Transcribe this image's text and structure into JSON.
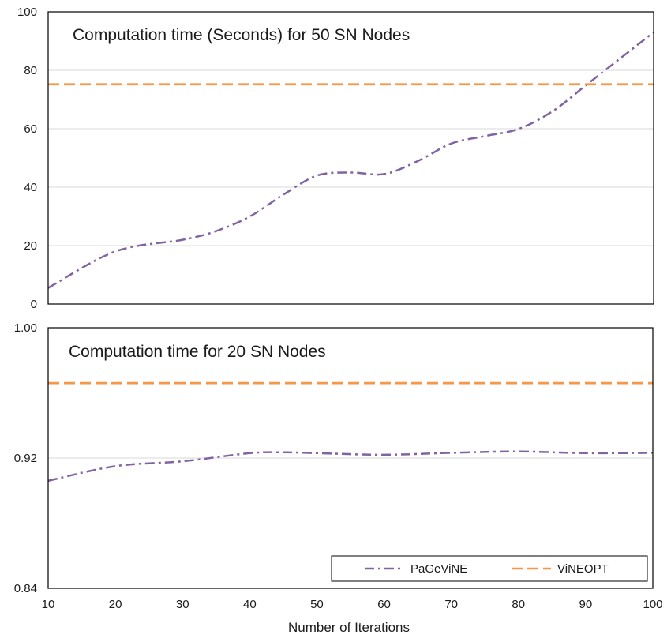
{
  "chart_data": [
    {
      "type": "line",
      "title": "Computation time (Seconds) for 50 SN Nodes",
      "xlabel": "Number of Iterations",
      "ylabel": "",
      "xlim": [
        10,
        100
      ],
      "ylim": [
        0,
        100
      ],
      "yticks": [
        0,
        20,
        40,
        60,
        80,
        100
      ],
      "yticklabels": [
        "0",
        "20",
        "40",
        "60",
        "80",
        "100"
      ],
      "grid": true,
      "series": [
        {
          "name": "PaGeViNE",
          "style": "dashdot",
          "color": "#8064A2",
          "x": [
            10,
            20,
            30,
            35,
            40,
            45,
            50,
            55,
            60,
            65,
            70,
            75,
            80,
            85,
            90,
            95,
            100
          ],
          "values": [
            5.5,
            18,
            22,
            25,
            30,
            37.5,
            44,
            45,
            44.5,
            49,
            55,
            57.5,
            60,
            66,
            75,
            84,
            93
          ]
        },
        {
          "name": "ViNEOPT",
          "style": "dashed",
          "color": "#F79646",
          "x": [
            10,
            100
          ],
          "values": [
            75.2,
            75.2
          ]
        }
      ]
    },
    {
      "type": "line",
      "title": "Computation time for 20 SN Nodes",
      "xlabel": "Number of Iterations",
      "ylabel": "",
      "xlim": [
        10,
        100
      ],
      "ylim": [
        0.84,
        1.0
      ],
      "xticks": [
        10,
        20,
        30,
        40,
        50,
        60,
        70,
        80,
        90,
        100
      ],
      "xticklabels": [
        "10",
        "20",
        "30",
        "40",
        "50",
        "60",
        "70",
        "80",
        "90",
        "100"
      ],
      "yticks": [
        0.84,
        0.92,
        1.0
      ],
      "yticklabels": [
        "0.84",
        "0.92",
        "1.00"
      ],
      "grid": true,
      "legend": "bottom-right",
      "series": [
        {
          "name": "PaGeViNE",
          "style": "dashdot",
          "color": "#8064A2",
          "x": [
            10,
            20,
            30,
            40,
            45,
            50,
            60,
            70,
            80,
            90,
            100
          ],
          "values": [
            0.906,
            0.915,
            0.918,
            0.923,
            0.9235,
            0.923,
            0.922,
            0.9232,
            0.924,
            0.923,
            0.9232
          ]
        },
        {
          "name": "ViNEOPT",
          "style": "dashed",
          "color": "#F79646",
          "x": [
            10,
            100
          ],
          "values": [
            0.966,
            0.966
          ]
        }
      ]
    }
  ],
  "legend": {
    "items": [
      {
        "label": "PaGeViNE",
        "color": "#8064A2",
        "style": "dashdot"
      },
      {
        "label": "ViNEOPT",
        "color": "#F79646",
        "style": "dashed"
      }
    ]
  },
  "colors": {
    "frame": "#000000",
    "grid": "#d9d9d9"
  }
}
